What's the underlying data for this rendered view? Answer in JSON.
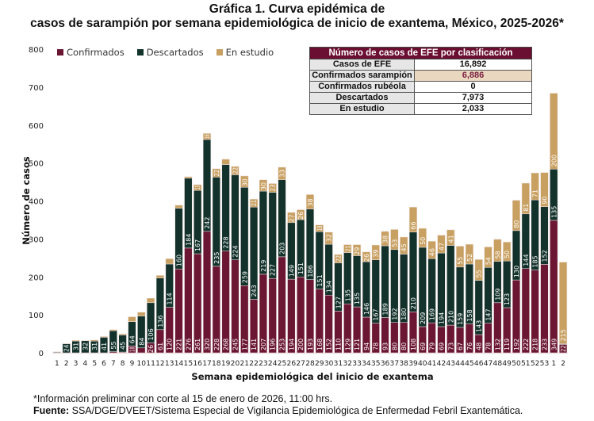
{
  "title_line1": "Gráfica 1. Curva epidémica de",
  "title_line2": "casos de sarampión por semana epidemiológica de inicio de exantema, México, 2025-2026*",
  "summary_table": {
    "header": "Número de casos de EFE por clasificación",
    "rows": [
      {
        "label": "Casos de EFE",
        "value": "16,892"
      },
      {
        "label": "Confirmados sarampión",
        "value": "6,886"
      },
      {
        "label": "Confirmados rubéola",
        "value": "0"
      },
      {
        "label": "Descartados",
        "value": "7,973"
      },
      {
        "label": "En estudio",
        "value": "2,033"
      }
    ]
  },
  "footer": {
    "note": "*Información preliminar con corte al 15 de enero de 2026, 11:00 hrs.",
    "source_label": "Fuente:",
    "source_text": " SSA/DGE/DVEET/Sistema Especial de Vigilancia Epidemiológica de Enfermedad Febril Exantemática."
  },
  "colors": {
    "confirmados": "#6b1733",
    "descartados": "#13322b",
    "en_estudio": "#c8a062",
    "table_header": "#6b0f32"
  },
  "chart_data": {
    "type": "bar",
    "stacked": true,
    "title": "Gráfica 1. Curva epidémica de casos de sarampión por semana epidemiológica de inicio de exantema, México, 2025-2026*",
    "xlabel": "Semana epidemiológica del inicio de exantema",
    "ylabel": "Número de casos",
    "ylim": [
      0,
      800
    ],
    "yticks": [
      0,
      100,
      200,
      300,
      400,
      500,
      600,
      700,
      800
    ],
    "grid": false,
    "legend_position": "top-left",
    "categories": [
      "1",
      "2",
      "3",
      "4",
      "5",
      "6",
      "7",
      "8",
      "9",
      "10",
      "11",
      "12",
      "13",
      "14",
      "15",
      "16",
      "17",
      "18",
      "19",
      "20",
      "21",
      "22",
      "23",
      "24",
      "25",
      "26",
      "27",
      "28",
      "29",
      "30",
      "31",
      "32",
      "33",
      "34",
      "35",
      "36",
      "37",
      "38",
      "39",
      "40",
      "41",
      "42",
      "43",
      "44",
      "45",
      "46",
      "47",
      "48",
      "49",
      "50",
      "51",
      "52",
      "53",
      "1",
      "2"
    ],
    "series": [
      {
        "name": "Confirmados",
        "color": "#6b1733",
        "values": [
          0,
          0,
          0,
          0,
          0,
          0,
          3,
          2,
          18,
          13,
          26,
          61,
          120,
          221,
          276,
          261,
          320,
          228,
          268,
          245,
          177,
          141,
          207,
          196,
          253,
          194,
          200,
          193,
          168,
          152,
          110,
          129,
          121,
          94,
          78,
          93,
          80,
          80,
          108,
          69,
          79,
          69,
          73,
          67,
          76,
          48,
          78,
          132,
          119,
          192,
          222,
          218,
          233,
          349,
          22
        ]
      },
      {
        "name": "Descartados",
        "color": "#13322b",
        "values": [
          2,
          24,
          31,
          32,
          31,
          41,
          55,
          45,
          64,
          84,
          106,
          136,
          114,
          160,
          184,
          167,
          242,
          235,
          228,
          224,
          259,
          243,
          219,
          227,
          203,
          149,
          151,
          186,
          151,
          134,
          127,
          135,
          135,
          146,
          167,
          189,
          192,
          180,
          210,
          209,
          169,
          194,
          210,
          159,
          158,
          143,
          147,
          109,
          123,
          130,
          144,
          185,
          152,
          135,
          2
        ]
      },
      {
        "name": "En estudio",
        "color": "#c8a062",
        "values": [
          1,
          1,
          2,
          1,
          3,
          2,
          3,
          3,
          13,
          10,
          12,
          7,
          14,
          8,
          4,
          15,
          16,
          22,
          14,
          22,
          30,
          21,
          30,
          23,
          33,
          27,
          26,
          38,
          18,
          32,
          22,
          21,
          29,
          26,
          39,
          38,
          53,
          45,
          66,
          50,
          46,
          47,
          41,
          55,
          52,
          55,
          54,
          58,
          50,
          80,
          81,
          71,
          90,
          200,
          215
        ]
      }
    ]
  }
}
